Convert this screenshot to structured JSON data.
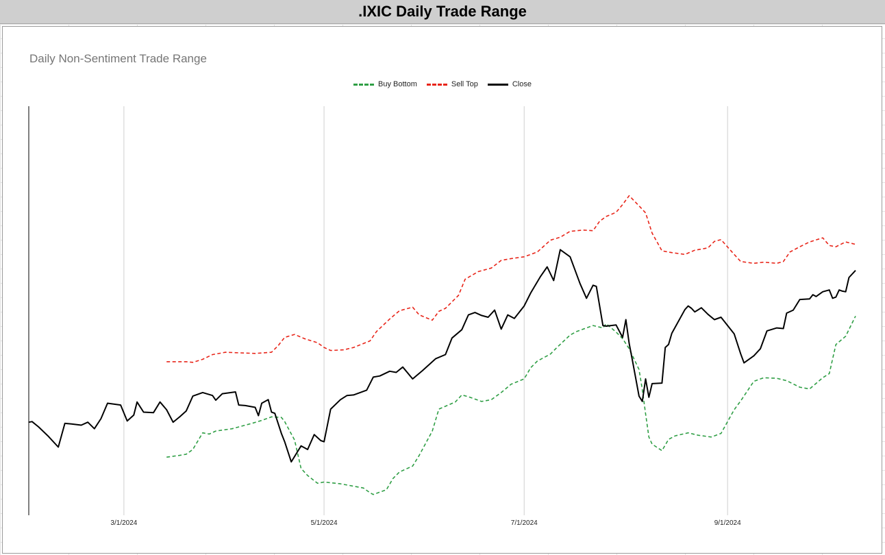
{
  "header": {
    "title": ".IXIC Daily Trade Range"
  },
  "chart_data": {
    "type": "line",
    "title": "Daily Non-Sentiment Trade Range",
    "xlabel": "",
    "ylabel": "",
    "grid": "vertical only",
    "legend_position": "top-center",
    "x_start": "2024-02-01",
    "x_end": "2024-10-10",
    "ylim": [
      7.0,
      76.0
    ],
    "x_ticks": [
      {
        "date": "2024-03-01",
        "label": "3/1/2024"
      },
      {
        "date": "2024-05-01",
        "label": "5/1/2024"
      },
      {
        "date": "2024-07-01",
        "label": "7/1/2024"
      },
      {
        "date": "2024-09-01",
        "label": "9/1/2024"
      }
    ],
    "series": [
      {
        "name": "Buy Bottom",
        "color": "#2e9e44",
        "dash": "dashed",
        "points": [
          [
            "2024-03-14",
            16.8
          ],
          [
            "2024-03-18",
            17.1
          ],
          [
            "2024-03-20",
            17.3
          ],
          [
            "2024-03-22",
            18.1
          ],
          [
            "2024-03-25",
            20.9
          ],
          [
            "2024-03-27",
            20.7
          ],
          [
            "2024-03-29",
            21.2
          ],
          [
            "2024-04-03",
            21.6
          ],
          [
            "2024-04-05",
            21.9
          ],
          [
            "2024-04-09",
            22.5
          ],
          [
            "2024-04-12",
            23.0
          ],
          [
            "2024-04-15",
            23.6
          ],
          [
            "2024-04-18",
            23.5
          ],
          [
            "2024-04-19",
            22.8
          ],
          [
            "2024-04-22",
            19.7
          ],
          [
            "2024-04-24",
            14.9
          ],
          [
            "2024-04-26",
            13.7
          ],
          [
            "2024-04-29",
            12.4
          ],
          [
            "2024-05-01",
            12.6
          ],
          [
            "2024-05-06",
            12.3
          ],
          [
            "2024-05-10",
            11.9
          ],
          [
            "2024-05-13",
            11.6
          ],
          [
            "2024-05-15",
            10.8
          ],
          [
            "2024-05-16",
            10.5
          ],
          [
            "2024-05-20",
            11.3
          ],
          [
            "2024-05-22",
            13.2
          ],
          [
            "2024-05-24",
            14.3
          ],
          [
            "2024-05-28",
            15.3
          ],
          [
            "2024-05-30",
            17.1
          ],
          [
            "2024-06-03",
            21.2
          ],
          [
            "2024-06-05",
            24.9
          ],
          [
            "2024-06-10",
            26.1
          ],
          [
            "2024-06-12",
            27.3
          ],
          [
            "2024-06-14",
            27.0
          ],
          [
            "2024-06-18",
            26.2
          ],
          [
            "2024-06-21",
            26.5
          ],
          [
            "2024-06-24",
            27.7
          ],
          [
            "2024-06-27",
            29.1
          ],
          [
            "2024-07-01",
            30.0
          ],
          [
            "2024-07-03",
            31.9
          ],
          [
            "2024-07-05",
            33.0
          ],
          [
            "2024-07-09",
            34.2
          ],
          [
            "2024-07-11",
            35.3
          ],
          [
            "2024-07-15",
            37.4
          ],
          [
            "2024-07-17",
            38.0
          ],
          [
            "2024-07-22",
            39.0
          ],
          [
            "2024-07-25",
            38.6
          ],
          [
            "2024-07-26",
            39.3
          ],
          [
            "2024-07-29",
            37.9
          ],
          [
            "2024-07-31",
            36.8
          ],
          [
            "2024-08-02",
            35.1
          ],
          [
            "2024-08-05",
            31.6
          ],
          [
            "2024-08-06",
            28.2
          ],
          [
            "2024-08-07",
            24.1
          ],
          [
            "2024-08-08",
            20.2
          ],
          [
            "2024-08-09",
            19.0
          ],
          [
            "2024-08-12",
            17.9
          ],
          [
            "2024-08-14",
            19.8
          ],
          [
            "2024-08-16",
            20.4
          ],
          [
            "2024-08-20",
            20.9
          ],
          [
            "2024-08-23",
            20.5
          ],
          [
            "2024-08-27",
            20.2
          ],
          [
            "2024-08-30",
            20.8
          ],
          [
            "2024-09-03",
            24.8
          ],
          [
            "2024-09-05",
            26.3
          ],
          [
            "2024-09-09",
            29.6
          ],
          [
            "2024-09-12",
            30.2
          ],
          [
            "2024-09-16",
            30.1
          ],
          [
            "2024-09-19",
            29.7
          ],
          [
            "2024-09-23",
            28.6
          ],
          [
            "2024-09-26",
            28.3
          ],
          [
            "2024-09-30",
            30.2
          ],
          [
            "2024-10-02",
            30.9
          ],
          [
            "2024-10-04",
            35.8
          ],
          [
            "2024-10-07",
            37.2
          ],
          [
            "2024-10-10",
            40.6
          ]
        ]
      },
      {
        "name": "Sell Top",
        "color": "#e82418",
        "dash": "dashed",
        "points": [
          [
            "2024-03-14",
            32.9
          ],
          [
            "2024-03-18",
            32.9
          ],
          [
            "2024-03-20",
            32.9
          ],
          [
            "2024-03-22",
            32.8
          ],
          [
            "2024-03-25",
            33.3
          ],
          [
            "2024-03-28",
            34.1
          ],
          [
            "2024-04-01",
            34.5
          ],
          [
            "2024-04-05",
            34.4
          ],
          [
            "2024-04-10",
            34.3
          ],
          [
            "2024-04-15",
            34.5
          ],
          [
            "2024-04-17",
            35.6
          ],
          [
            "2024-04-19",
            37.0
          ],
          [
            "2024-04-22",
            37.5
          ],
          [
            "2024-04-25",
            36.8
          ],
          [
            "2024-04-29",
            36.1
          ],
          [
            "2024-05-01",
            35.3
          ],
          [
            "2024-05-03",
            34.8
          ],
          [
            "2024-05-07",
            34.9
          ],
          [
            "2024-05-10",
            35.3
          ],
          [
            "2024-05-15",
            36.4
          ],
          [
            "2024-05-17",
            38.0
          ],
          [
            "2024-05-21",
            40.1
          ],
          [
            "2024-05-24",
            41.5
          ],
          [
            "2024-05-28",
            42.1
          ],
          [
            "2024-05-30",
            40.8
          ],
          [
            "2024-06-03",
            39.9
          ],
          [
            "2024-06-05",
            41.4
          ],
          [
            "2024-06-07",
            41.9
          ],
          [
            "2024-06-11",
            44.1
          ],
          [
            "2024-06-13",
            46.8
          ],
          [
            "2024-06-17",
            48.1
          ],
          [
            "2024-06-21",
            48.7
          ],
          [
            "2024-06-24",
            50.0
          ],
          [
            "2024-06-27",
            50.3
          ],
          [
            "2024-07-01",
            50.6
          ],
          [
            "2024-07-05",
            51.4
          ],
          [
            "2024-07-09",
            53.4
          ],
          [
            "2024-07-12",
            53.9
          ],
          [
            "2024-07-15",
            54.9
          ],
          [
            "2024-07-19",
            55.1
          ],
          [
            "2024-07-22",
            55.0
          ],
          [
            "2024-07-24",
            56.6
          ],
          [
            "2024-07-26",
            57.4
          ],
          [
            "2024-07-29",
            58.1
          ],
          [
            "2024-07-31",
            59.4
          ],
          [
            "2024-08-02",
            60.9
          ],
          [
            "2024-08-05",
            59.2
          ],
          [
            "2024-08-07",
            58.0
          ],
          [
            "2024-08-09",
            54.6
          ],
          [
            "2024-08-12",
            51.6
          ],
          [
            "2024-08-15",
            51.3
          ],
          [
            "2024-08-19",
            51.0
          ],
          [
            "2024-08-22",
            51.7
          ],
          [
            "2024-08-26",
            52.1
          ],
          [
            "2024-08-28",
            53.2
          ],
          [
            "2024-08-30",
            53.5
          ],
          [
            "2024-09-03",
            51.0
          ],
          [
            "2024-09-05",
            49.8
          ],
          [
            "2024-09-09",
            49.5
          ],
          [
            "2024-09-12",
            49.7
          ],
          [
            "2024-09-16",
            49.5
          ],
          [
            "2024-09-18",
            49.8
          ],
          [
            "2024-09-20",
            51.4
          ],
          [
            "2024-09-23",
            52.3
          ],
          [
            "2024-09-26",
            53.1
          ],
          [
            "2024-09-30",
            53.8
          ],
          [
            "2024-10-02",
            52.5
          ],
          [
            "2024-10-04",
            52.3
          ],
          [
            "2024-10-07",
            53.1
          ],
          [
            "2024-10-10",
            52.7
          ]
        ]
      },
      {
        "name": "Close",
        "color": "#000000",
        "dash": "solid",
        "points": [
          [
            "2024-02-01",
            22.7
          ],
          [
            "2024-02-02",
            22.8
          ],
          [
            "2024-02-04",
            21.9
          ],
          [
            "2024-02-07",
            20.3
          ],
          [
            "2024-02-10",
            18.5
          ],
          [
            "2024-02-12",
            22.5
          ],
          [
            "2024-02-14",
            22.4
          ],
          [
            "2024-02-17",
            22.2
          ],
          [
            "2024-02-19",
            22.7
          ],
          [
            "2024-02-21",
            21.6
          ],
          [
            "2024-02-23",
            23.3
          ],
          [
            "2024-02-25",
            25.9
          ],
          [
            "2024-02-29",
            25.6
          ],
          [
            "2024-03-02",
            22.9
          ],
          [
            "2024-03-04",
            23.9
          ],
          [
            "2024-03-05",
            26.1
          ],
          [
            "2024-03-07",
            24.4
          ],
          [
            "2024-03-10",
            24.3
          ],
          [
            "2024-03-12",
            26.1
          ],
          [
            "2024-03-14",
            24.8
          ],
          [
            "2024-03-16",
            22.7
          ],
          [
            "2024-03-18",
            23.6
          ],
          [
            "2024-03-20",
            24.6
          ],
          [
            "2024-03-22",
            27.1
          ],
          [
            "2024-03-25",
            27.7
          ],
          [
            "2024-03-28",
            27.2
          ],
          [
            "2024-03-29",
            26.4
          ],
          [
            "2024-03-31",
            27.5
          ],
          [
            "2024-04-04",
            27.8
          ],
          [
            "2024-04-05",
            25.6
          ],
          [
            "2024-04-07",
            25.5
          ],
          [
            "2024-04-10",
            25.2
          ],
          [
            "2024-04-11",
            23.8
          ],
          [
            "2024-04-12",
            25.9
          ],
          [
            "2024-04-14",
            26.5
          ],
          [
            "2024-04-15",
            24.4
          ],
          [
            "2024-04-16",
            24.2
          ],
          [
            "2024-04-18",
            20.8
          ],
          [
            "2024-04-19",
            19.4
          ],
          [
            "2024-04-21",
            16.0
          ],
          [
            "2024-04-24",
            18.7
          ],
          [
            "2024-04-26",
            18.1
          ],
          [
            "2024-04-28",
            20.6
          ],
          [
            "2024-04-30",
            19.6
          ],
          [
            "2024-05-01",
            19.4
          ],
          [
            "2024-05-03",
            24.9
          ],
          [
            "2024-05-06",
            26.5
          ],
          [
            "2024-05-08",
            27.2
          ],
          [
            "2024-05-10",
            27.3
          ],
          [
            "2024-05-14",
            28.1
          ],
          [
            "2024-05-16",
            30.3
          ],
          [
            "2024-05-18",
            30.5
          ],
          [
            "2024-05-21",
            31.3
          ],
          [
            "2024-05-23",
            31.1
          ],
          [
            "2024-05-25",
            32.0
          ],
          [
            "2024-05-28",
            30.0
          ],
          [
            "2024-05-31",
            31.4
          ],
          [
            "2024-06-04",
            33.4
          ],
          [
            "2024-06-07",
            34.1
          ],
          [
            "2024-06-09",
            36.9
          ],
          [
            "2024-06-12",
            38.3
          ],
          [
            "2024-06-14",
            40.8
          ],
          [
            "2024-06-16",
            41.2
          ],
          [
            "2024-06-18",
            40.7
          ],
          [
            "2024-06-20",
            40.4
          ],
          [
            "2024-06-22",
            41.6
          ],
          [
            "2024-06-24",
            38.4
          ],
          [
            "2024-06-26",
            40.8
          ],
          [
            "2024-06-28",
            40.2
          ],
          [
            "2024-07-01",
            42.3
          ],
          [
            "2024-07-03",
            44.5
          ],
          [
            "2024-07-06",
            47.3
          ],
          [
            "2024-07-08",
            48.9
          ],
          [
            "2024-07-10",
            46.6
          ],
          [
            "2024-07-12",
            51.8
          ],
          [
            "2024-07-15",
            50.6
          ],
          [
            "2024-07-18",
            46.1
          ],
          [
            "2024-07-20",
            43.6
          ],
          [
            "2024-07-22",
            45.8
          ],
          [
            "2024-07-23",
            45.6
          ],
          [
            "2024-07-25",
            39.0
          ],
          [
            "2024-07-26",
            38.9
          ],
          [
            "2024-07-29",
            39.1
          ],
          [
            "2024-07-31",
            37.0
          ],
          [
            "2024-08-01",
            40.0
          ],
          [
            "2024-08-02",
            36.0
          ],
          [
            "2024-08-03",
            33.1
          ],
          [
            "2024-08-05",
            27.1
          ],
          [
            "2024-08-06",
            26.2
          ],
          [
            "2024-08-07",
            30.0
          ],
          [
            "2024-08-08",
            26.9
          ],
          [
            "2024-08-09",
            29.2
          ],
          [
            "2024-08-12",
            29.3
          ],
          [
            "2024-08-13",
            35.3
          ],
          [
            "2024-08-14",
            35.8
          ],
          [
            "2024-08-15",
            37.7
          ],
          [
            "2024-08-19",
            41.7
          ],
          [
            "2024-08-20",
            42.3
          ],
          [
            "2024-08-21",
            41.9
          ],
          [
            "2024-08-22",
            41.3
          ],
          [
            "2024-08-24",
            42.0
          ],
          [
            "2024-08-26",
            40.9
          ],
          [
            "2024-08-28",
            40.0
          ],
          [
            "2024-08-30",
            40.4
          ],
          [
            "2024-09-03",
            37.6
          ],
          [
            "2024-09-05",
            34.2
          ],
          [
            "2024-09-06",
            32.7
          ],
          [
            "2024-09-09",
            33.9
          ],
          [
            "2024-09-11",
            35.1
          ],
          [
            "2024-09-13",
            38.1
          ],
          [
            "2024-09-16",
            38.6
          ],
          [
            "2024-09-18",
            38.5
          ],
          [
            "2024-09-19",
            41.1
          ],
          [
            "2024-09-21",
            41.6
          ],
          [
            "2024-09-23",
            43.4
          ],
          [
            "2024-09-26",
            43.5
          ],
          [
            "2024-09-27",
            44.2
          ],
          [
            "2024-09-28",
            43.9
          ],
          [
            "2024-09-30",
            44.7
          ],
          [
            "2024-10-02",
            45.0
          ],
          [
            "2024-10-03",
            43.6
          ],
          [
            "2024-10-04",
            43.8
          ],
          [
            "2024-10-05",
            45.0
          ],
          [
            "2024-10-06",
            44.8
          ],
          [
            "2024-10-07",
            44.7
          ],
          [
            "2024-10-08",
            47.1
          ],
          [
            "2024-10-10",
            48.3
          ]
        ]
      }
    ]
  }
}
